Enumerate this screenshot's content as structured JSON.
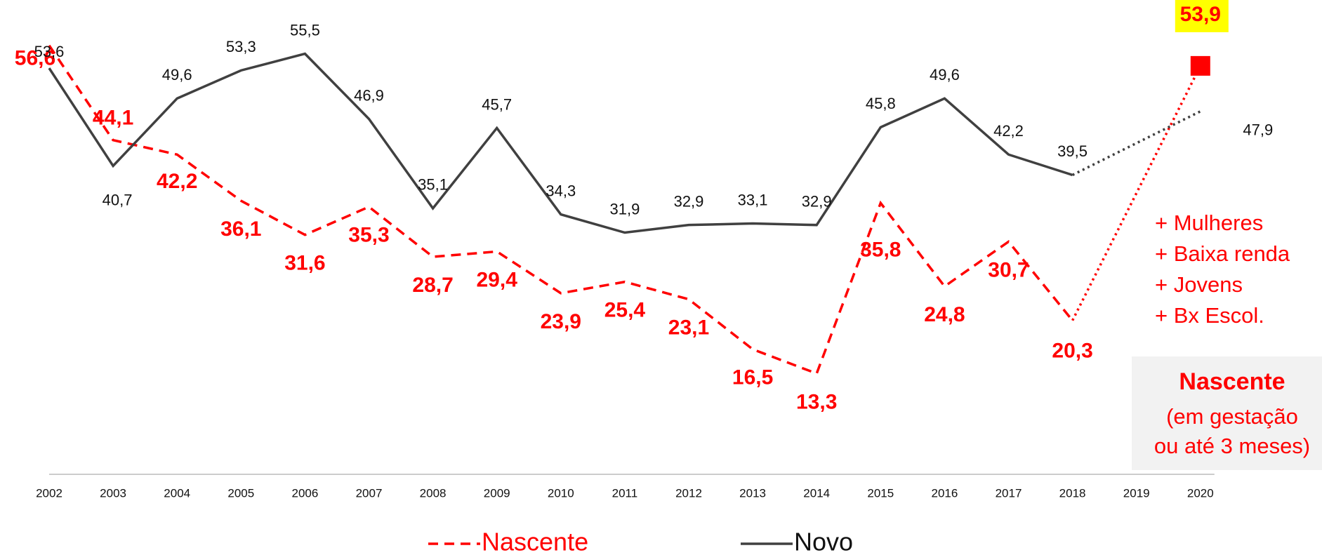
{
  "chart_data": {
    "type": "line",
    "categories": [
      "2002",
      "2003",
      "2004",
      "2005",
      "2006",
      "2007",
      "2008",
      "2009",
      "2010",
      "2011",
      "2012",
      "2013",
      "2014",
      "2015",
      "2016",
      "2017",
      "2018",
      "2019",
      "2020"
    ],
    "series": [
      {
        "name": "Nascente",
        "color": "#ff0000",
        "values": [
          56.6,
          44.1,
          42.2,
          36.1,
          31.6,
          35.3,
          28.7,
          29.4,
          23.9,
          25.4,
          23.1,
          16.5,
          13.3,
          35.8,
          24.8,
          30.7,
          20.3,
          null,
          53.9
        ],
        "value_labels": [
          "56,6",
          "44,1",
          "42,2",
          "36,1",
          "31,6",
          "35,3",
          "28,7",
          "29,4",
          "23,9",
          "25,4",
          "23,1",
          "16,5",
          "13,3",
          "35,8",
          "24,8",
          "30,7",
          "20,3",
          null,
          "53,9"
        ]
      },
      {
        "name": "Novo",
        "color": "#404040",
        "values": [
          53.6,
          40.7,
          49.6,
          53.3,
          55.5,
          46.9,
          35.1,
          45.7,
          34.3,
          31.9,
          32.9,
          33.1,
          32.9,
          45.8,
          49.6,
          42.2,
          39.5,
          null,
          47.9
        ],
        "value_labels": [
          "53,6",
          "40,7",
          "49,6",
          "53,3",
          "55,5",
          "46,9",
          "35,1",
          "45,7",
          "34,3",
          "31,9",
          "32,9",
          "33,1",
          "32,9",
          "45,8",
          "49,6",
          "42,2",
          "39,5",
          null,
          "47,9"
        ]
      }
    ],
    "ylim": [
      0,
      60
    ],
    "annotations": [
      "+ Mulheres",
      "+ Baixa renda",
      "+ Jovens",
      "+ Bx Escol."
    ],
    "note_box": {
      "title": "Nascente",
      "lines": [
        "(em gestação",
        "ou até 3 meses)"
      ]
    }
  }
}
